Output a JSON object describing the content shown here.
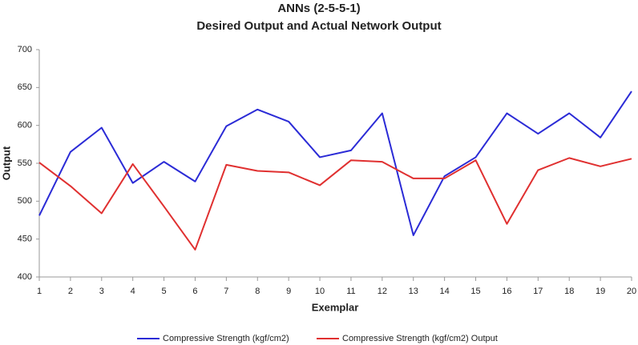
{
  "chart_data": {
    "type": "line",
    "title": "ANNs (2-5-5-1)",
    "subtitle": "Desired Output and Actual Network Output",
    "x_label": "Exemplar",
    "y_label": "Output",
    "x": [
      1,
      2,
      3,
      4,
      5,
      6,
      7,
      8,
      9,
      10,
      11,
      12,
      13,
      14,
      15,
      16,
      17,
      18,
      19,
      20
    ],
    "series": [
      {
        "name": "Compressive Strength (kgf/cm2)",
        "color": "#2b2bd6",
        "values": [
          481,
          565,
          597,
          524,
          552,
          526,
          599,
          621,
          605,
          558,
          567,
          616,
          455,
          533,
          558,
          616,
          589,
          616,
          584,
          645
        ]
      },
      {
        "name": "Compressive Strength (kgf/cm2) Output",
        "color": "#e03030",
        "values": [
          551,
          520,
          484,
          549,
          493,
          436,
          548,
          540,
          538,
          521,
          554,
          552,
          530,
          530,
          554,
          470,
          541,
          557,
          546,
          556
        ]
      }
    ],
    "xlim": [
      1,
      20
    ],
    "xticks": [
      1,
      2,
      3,
      4,
      5,
      6,
      7,
      8,
      9,
      10,
      11,
      12,
      13,
      14,
      15,
      16,
      17,
      18,
      19,
      20
    ],
    "ylim": [
      400,
      700
    ],
    "yticks": [
      400,
      450,
      500,
      550,
      600,
      650,
      700
    ],
    "grid": false,
    "legend": "bottom"
  }
}
